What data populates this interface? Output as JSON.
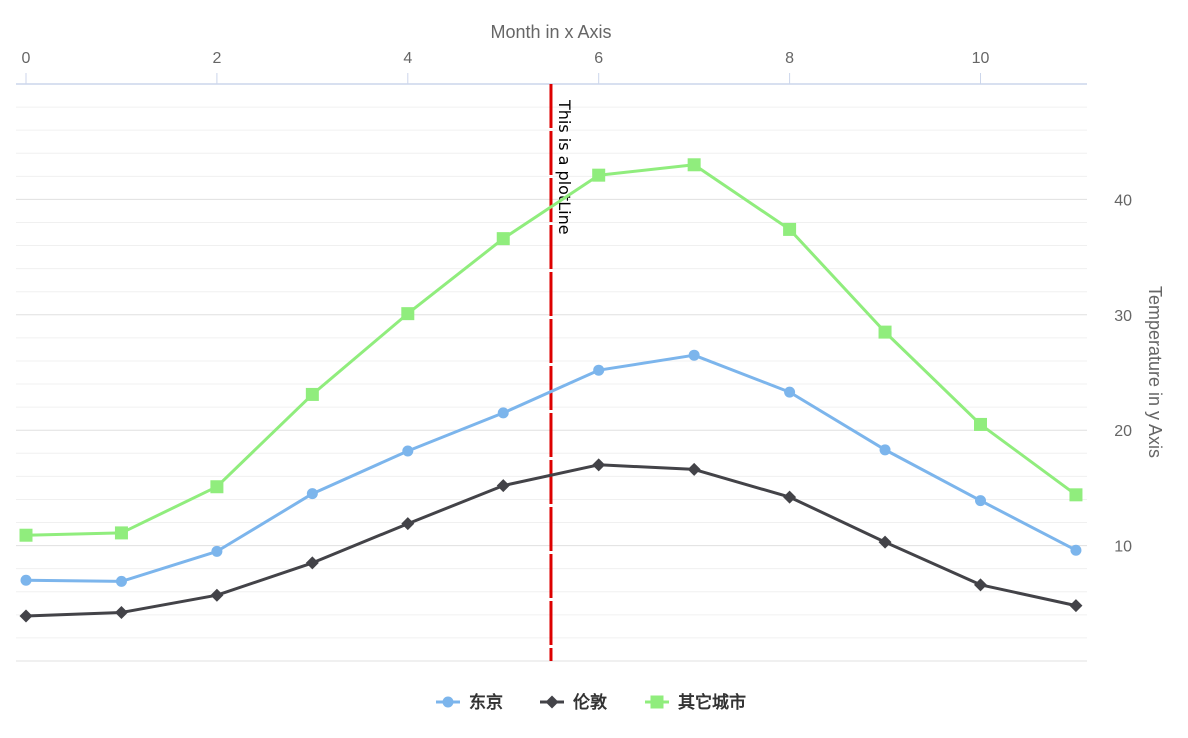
{
  "chart_data": {
    "type": "line",
    "x": [
      0,
      1,
      2,
      3,
      4,
      5,
      6,
      7,
      8,
      9,
      10,
      11
    ],
    "x_ticks": [
      0,
      2,
      4,
      6,
      8,
      10
    ],
    "xlabel": "Month in x Axis",
    "xlim": [
      0,
      11
    ],
    "x_axis_position": "top",
    "y_ticks": [
      10,
      20,
      30,
      40
    ],
    "ylabel": "Temperature in y Axis",
    "ylim": [
      0,
      50
    ],
    "y_axis_position": "right",
    "grid": true,
    "legend_position": "bottom-center",
    "series": [
      {
        "name": "东京",
        "color": "#7cb5ec",
        "marker": "circle",
        "values": [
          7.0,
          6.9,
          9.5,
          14.5,
          18.2,
          21.5,
          25.2,
          26.5,
          23.3,
          18.3,
          13.9,
          9.6
        ]
      },
      {
        "name": "伦敦",
        "color": "#434348",
        "marker": "diamond",
        "values": [
          3.9,
          4.2,
          5.7,
          8.5,
          11.9,
          15.2,
          17.0,
          16.6,
          14.2,
          10.3,
          6.6,
          4.8
        ]
      },
      {
        "name": "其它城市",
        "color": "#90ed7d",
        "marker": "square",
        "values": [
          10.9,
          11.1,
          15.1,
          23.1,
          30.1,
          36.6,
          42.1,
          43.0,
          37.4,
          28.5,
          20.5,
          14.4
        ]
      }
    ],
    "plot_line": {
      "value": 5.5,
      "label": "This is a plotLine",
      "color": "#dd0000",
      "style": "dashed"
    }
  }
}
